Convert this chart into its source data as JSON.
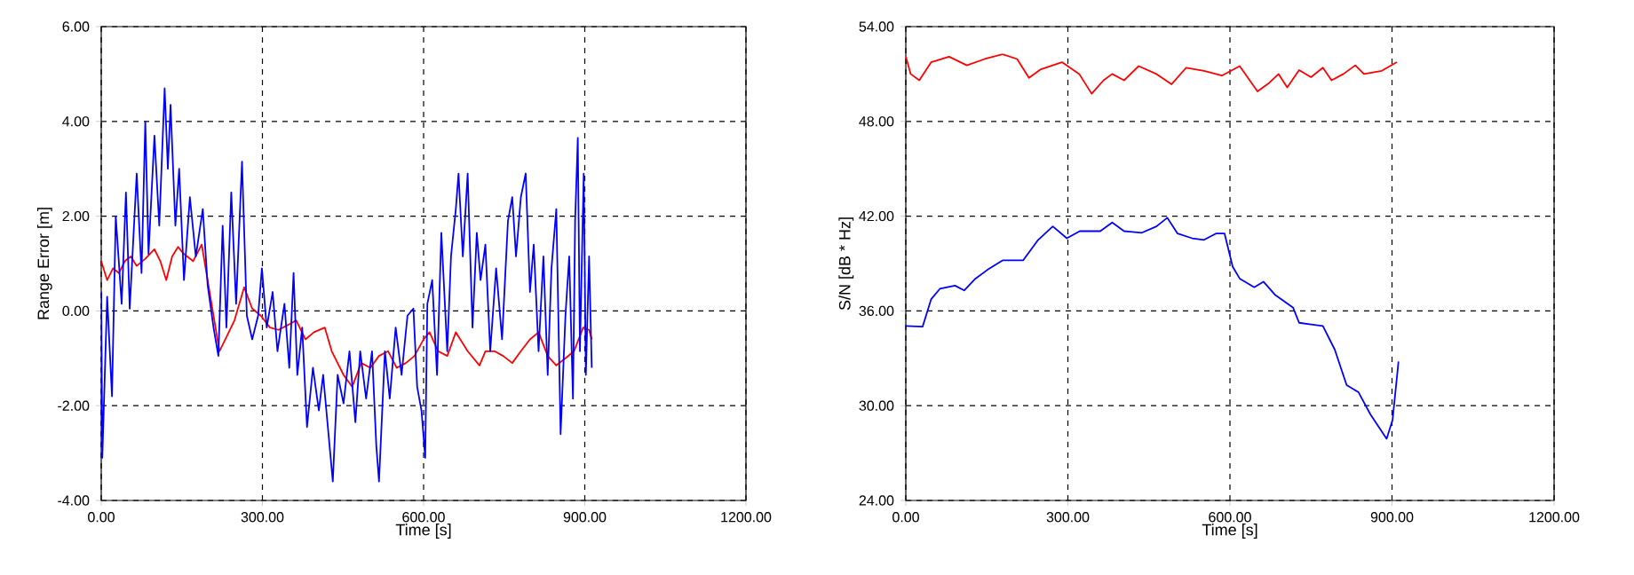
{
  "chart_data": [
    {
      "type": "line",
      "xlabel": "Time [s]",
      "ylabel": "Range Error [m]",
      "grid": true,
      "xlim": [
        0,
        1200
      ],
      "ylim": [
        -4,
        6
      ],
      "xticks": [
        {
          "value": 0,
          "label": "0.00"
        },
        {
          "value": 300,
          "label": "300.00"
        },
        {
          "value": 600,
          "label": "600.00"
        },
        {
          "value": 900,
          "label": "900.00"
        },
        {
          "value": 1200,
          "label": "1200.00"
        }
      ],
      "yticks": [
        {
          "value": -4,
          "label": "-4.00"
        },
        {
          "value": -2,
          "label": "-2.00"
        },
        {
          "value": 0,
          "label": "0.00"
        },
        {
          "value": 2,
          "label": "2.00"
        },
        {
          "value": 4,
          "label": "4.00"
        },
        {
          "value": 6,
          "label": "6.00"
        }
      ],
      "series": [
        {
          "color": "#ff0000",
          "x": [
            0,
            11,
            22,
            33,
            44,
            55,
            66,
            82,
            99,
            110,
            121,
            132,
            143,
            154,
            171,
            187,
            198,
            209,
            220,
            231,
            248,
            266,
            281,
            297,
            314,
            330,
            347,
            363,
            380,
            396,
            416,
            429,
            451,
            467,
            484,
            501,
            517,
            534,
            550,
            567,
            583,
            600,
            611,
            627,
            644,
            660,
            682,
            704,
            715,
            732,
            748,
            765,
            781,
            798,
            814,
            831,
            847,
            864,
            880,
            897,
            908,
            913
          ],
          "values": [
            1.05,
            0.65,
            0.9,
            0.8,
            1.05,
            1.15,
            0.95,
            1.1,
            1.3,
            1.05,
            0.65,
            1.15,
            1.35,
            1.2,
            1.05,
            1.4,
            0.65,
            -0.1,
            -0.85,
            -0.6,
            -0.2,
            0.5,
            0.05,
            -0.1,
            -0.35,
            -0.4,
            -0.3,
            -0.2,
            -0.6,
            -0.45,
            -0.35,
            -0.85,
            -1.35,
            -1.6,
            -1.1,
            -1.2,
            -0.95,
            -0.85,
            -1.2,
            -1.1,
            -0.95,
            -0.6,
            -0.45,
            -0.85,
            -0.95,
            -0.45,
            -0.85,
            -1.15,
            -0.85,
            -0.85,
            -0.95,
            -1.1,
            -0.85,
            -0.6,
            -0.45,
            -0.95,
            -1.15,
            -1.0,
            -0.85,
            -0.35,
            -0.4,
            -0.6
          ]
        },
        {
          "color": "#0000ff",
          "x": [
            0,
            2,
            11,
            20,
            27,
            38,
            46,
            53,
            66,
            75,
            82,
            88,
            99,
            108,
            118,
            124,
            129,
            138,
            145,
            154,
            165,
            176,
            189,
            198,
            209,
            218,
            226,
            233,
            242,
            251,
            262,
            271,
            281,
            292,
            299,
            308,
            319,
            328,
            341,
            350,
            358,
            365,
            374,
            383,
            394,
            405,
            413,
            423,
            431,
            440,
            451,
            462,
            473,
            482,
            493,
            504,
            512,
            517,
            528,
            537,
            548,
            559,
            570,
            581,
            588,
            596,
            603,
            607,
            616,
            625,
            633,
            644,
            651,
            660,
            665,
            673,
            682,
            691,
            699,
            706,
            715,
            724,
            735,
            746,
            757,
            765,
            772,
            781,
            790,
            798,
            805,
            814,
            823,
            831,
            838,
            847,
            855,
            864,
            871,
            878,
            882,
            887,
            891,
            898,
            902,
            908,
            913
          ],
          "values": [
            0.41,
            -3.1,
            0.3,
            -1.8,
            2.0,
            0.15,
            2.5,
            0.05,
            2.9,
            0.8,
            4.0,
            1.2,
            3.7,
            1.8,
            4.7,
            3.0,
            4.35,
            1.8,
            3.0,
            0.65,
            2.4,
            1.15,
            2.15,
            0.55,
            -0.35,
            -0.95,
            1.8,
            -0.35,
            2.5,
            0.15,
            3.15,
            -0.1,
            -0.6,
            -0.1,
            0.9,
            -0.35,
            0.4,
            -0.85,
            0.15,
            -1.2,
            0.8,
            -1.35,
            -0.35,
            -2.45,
            -1.2,
            -2.1,
            -1.35,
            -2.6,
            -3.6,
            -1.35,
            -1.95,
            -0.85,
            -2.35,
            -0.85,
            -1.85,
            -0.85,
            -2.85,
            -3.6,
            -0.85,
            -1.85,
            -0.35,
            -1.35,
            -0.1,
            0.05,
            -1.6,
            -2.1,
            -3.1,
            0.15,
            0.65,
            -1.35,
            1.65,
            -0.85,
            1.15,
            2.15,
            2.9,
            1.15,
            2.9,
            -0.35,
            1.65,
            0.65,
            1.4,
            -0.85,
            0.9,
            -0.6,
            1.9,
            2.4,
            1.15,
            2.4,
            2.9,
            0.4,
            1.4,
            -0.85,
            1.15,
            -1.35,
            0.9,
            2.15,
            -2.6,
            -0.1,
            1.15,
            -1.85,
            1.9,
            3.65,
            -0.85,
            2.9,
            -1.35,
            1.15,
            -1.2
          ]
        }
      ]
    },
    {
      "type": "line",
      "xlabel": "Time [s]",
      "ylabel": "S/N [dB * Hz]",
      "grid": true,
      "xlim": [
        0,
        1200
      ],
      "ylim": [
        24,
        54
      ],
      "xticks": [
        {
          "value": 0,
          "label": "0.00"
        },
        {
          "value": 300,
          "label": "300.00"
        },
        {
          "value": 600,
          "label": "600.00"
        },
        {
          "value": 900,
          "label": "900.00"
        },
        {
          "value": 1200,
          "label": "1200.00"
        }
      ],
      "yticks": [
        {
          "value": 24,
          "label": "24.00"
        },
        {
          "value": 30,
          "label": "30.00"
        },
        {
          "value": 36,
          "label": "36.00"
        },
        {
          "value": 42,
          "label": "42.00"
        },
        {
          "value": 48,
          "label": "48.00"
        },
        {
          "value": 54,
          "label": "54.00"
        }
      ],
      "series": [
        {
          "color": "#ff0000",
          "x": [
            0,
            9,
            25,
            47,
            80,
            113,
            146,
            179,
            206,
            228,
            250,
            289,
            321,
            344,
            366,
            382,
            404,
            431,
            464,
            492,
            519,
            552,
            585,
            618,
            651,
            673,
            690,
            706,
            728,
            750,
            772,
            788,
            810,
            832,
            848,
            881,
            909
          ],
          "values": [
            52.1,
            51.0,
            50.6,
            51.75,
            52.1,
            51.55,
            51.95,
            52.25,
            51.95,
            50.75,
            51.3,
            51.75,
            51.0,
            49.75,
            50.6,
            51.0,
            50.6,
            51.5,
            51.0,
            50.35,
            51.4,
            51.2,
            50.9,
            51.5,
            49.9,
            50.45,
            51.0,
            50.15,
            51.25,
            50.8,
            51.4,
            50.6,
            51.0,
            51.55,
            51.0,
            51.2,
            51.75
          ]
        },
        {
          "color": "#0000ff",
          "x": [
            0,
            31,
            47,
            63,
            91,
            108,
            129,
            151,
            179,
            217,
            245,
            272,
            298,
            322,
            360,
            382,
            404,
            437,
            464,
            484,
            503,
            530,
            552,
            574,
            590,
            605,
            618,
            645,
            662,
            684,
            717,
            728,
            750,
            772,
            794,
            816,
            838,
            860,
            890,
            901,
            912
          ],
          "values": [
            35.05,
            35.0,
            36.75,
            37.4,
            37.6,
            37.3,
            38.05,
            38.6,
            39.2,
            39.2,
            40.5,
            41.35,
            40.6,
            41.05,
            41.05,
            41.6,
            41.05,
            40.95,
            41.35,
            41.9,
            40.9,
            40.6,
            40.5,
            40.9,
            40.9,
            38.8,
            38.05,
            37.5,
            37.85,
            37.0,
            36.2,
            35.25,
            35.15,
            35.05,
            33.55,
            31.3,
            30.85,
            29.45,
            27.9,
            29.1,
            32.8
          ]
        }
      ]
    }
  ]
}
